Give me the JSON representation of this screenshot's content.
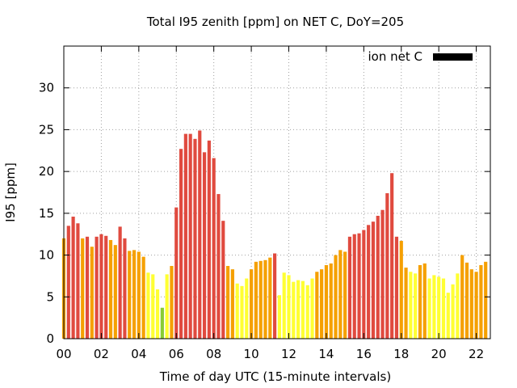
{
  "chart_data": {
    "type": "bar",
    "title": "Total I95 zenith [ppm] on NET C, DoY=205",
    "xlabel": "Time of day UTC (15-minute intervals)",
    "ylabel": "I95 [ppm]",
    "legend": {
      "label": "ion net C",
      "color": "#000000",
      "placement": "top-right"
    },
    "xlim": [
      0,
      22.75
    ],
    "ylim": [
      0,
      35
    ],
    "grid": true,
    "x_ticks": [
      "00",
      "02",
      "04",
      "06",
      "08",
      "10",
      "12",
      "14",
      "16",
      "18",
      "20",
      "22"
    ],
    "y_ticks": [
      "0",
      "5",
      "10",
      "15",
      "20",
      "25",
      "30"
    ],
    "interval_hours": 0.25,
    "colors": {
      "red": "#e04a3f",
      "orange": "#f5a000",
      "yellow": "#ffff33",
      "green": "#88cc33",
      "frame": "#000000"
    },
    "values": [
      12.0,
      13.5,
      14.6,
      13.8,
      12.0,
      12.2,
      11.0,
      12.2,
      12.5,
      12.3,
      11.8,
      11.2,
      13.4,
      12.0,
      10.5,
      10.6,
      10.4,
      9.8,
      7.9,
      7.7,
      5.9,
      3.7,
      7.7,
      8.7,
      15.7,
      22.7,
      24.5,
      24.5,
      23.9,
      24.9,
      22.3,
      23.7,
      21.6,
      17.3,
      14.1,
      8.7,
      8.3,
      6.6,
      6.3,
      7.2,
      8.3,
      9.2,
      9.3,
      9.4,
      9.7,
      10.2,
      5.2,
      7.9,
      7.6,
      6.8,
      7.0,
      6.9,
      6.4,
      7.2,
      8.0,
      8.3,
      8.8,
      9.0,
      10.0,
      10.6,
      10.4,
      12.2,
      12.5,
      12.6,
      13.0,
      13.6,
      14.0,
      14.7,
      15.4,
      17.4,
      19.8,
      12.2,
      11.7,
      8.5,
      8.0,
      7.8,
      8.8,
      9.0,
      7.2,
      7.6,
      7.4,
      7.2,
      5.5,
      6.5,
      7.8,
      10.0,
      9.1,
      8.3,
      8.0,
      8.8,
      9.2
    ],
    "bar_colors": [
      "orange",
      "red",
      "red",
      "red",
      "orange",
      "red",
      "orange",
      "red",
      "red",
      "red",
      "orange",
      "orange",
      "red",
      "red",
      "orange",
      "orange",
      "orange",
      "orange",
      "yellow",
      "yellow",
      "yellow",
      "green",
      "yellow",
      "orange",
      "red",
      "red",
      "red",
      "red",
      "red",
      "red",
      "red",
      "red",
      "red",
      "red",
      "red",
      "orange",
      "orange",
      "yellow",
      "yellow",
      "yellow",
      "orange",
      "orange",
      "orange",
      "orange",
      "orange",
      "red",
      "yellow",
      "yellow",
      "yellow",
      "yellow",
      "yellow",
      "yellow",
      "yellow",
      "yellow",
      "orange",
      "orange",
      "orange",
      "orange",
      "orange",
      "orange",
      "orange",
      "red",
      "red",
      "red",
      "red",
      "red",
      "red",
      "red",
      "red",
      "red",
      "red",
      "red",
      "orange",
      "orange",
      "yellow",
      "yellow",
      "orange",
      "orange",
      "yellow",
      "yellow",
      "yellow",
      "yellow",
      "yellow",
      "yellow",
      "yellow",
      "orange",
      "orange",
      "orange",
      "orange",
      "orange",
      "orange"
    ]
  }
}
